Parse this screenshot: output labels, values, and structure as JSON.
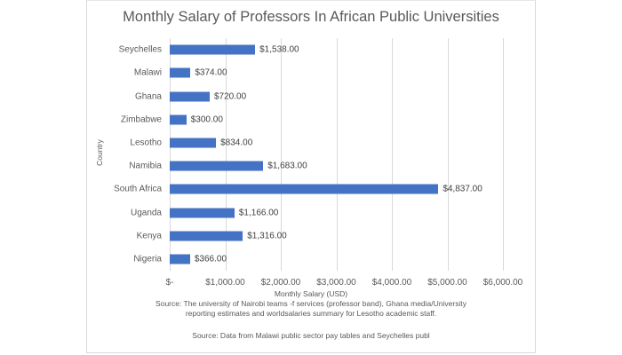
{
  "chart_data": {
    "type": "bar",
    "orientation": "horizontal",
    "title": "Monthly Salary of Professors In African Public Universities",
    "xlabel": "Monthly Salary (USD)",
    "ylabel": "Country",
    "categories": [
      "Seychelles",
      "Malawi",
      "Ghana",
      "Zimbabwe",
      "Lesotho",
      "Namibia",
      "South Africa",
      "Uganda",
      "Kenya",
      "Nigeria"
    ],
    "values": [
      1538,
      374,
      720,
      300,
      834,
      1683,
      4837,
      1166,
      1316,
      366
    ],
    "data_labels": [
      "$1,538.00",
      "$374.00",
      "$720.00",
      "$300.00",
      "$834.00",
      "$1,683.00",
      "$4,837.00",
      "$1,166.00",
      "$1,316.00",
      "$366.00"
    ],
    "xlim": [
      0,
      6000
    ],
    "xticks": [
      0,
      1000,
      2000,
      3000,
      4000,
      5000,
      6000
    ],
    "xtick_labels": [
      "$-",
      "$1,000.00",
      "$2,000.00",
      "$3,000.00",
      "$4,000.00",
      "$5,000.00",
      "$6,000.00"
    ],
    "grid": true,
    "legend": null,
    "bar_color": "#4472c4",
    "annotations": [
      "Source: The university of Nairobi teams -f services (professor band), Ghana media/University",
      "reporting estimates and worldsalaries summary for Lesotho academic staff.",
      "Source: Data from Malawi public sector pay tables and Seychelles publ"
    ]
  }
}
